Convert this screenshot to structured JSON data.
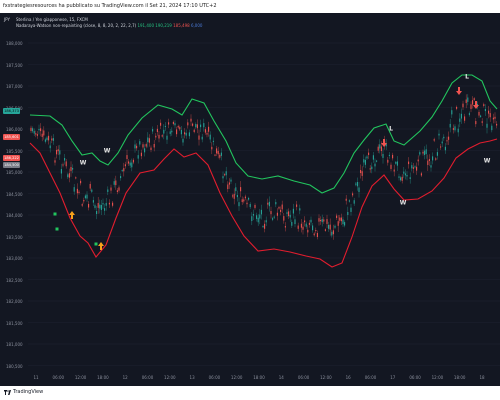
{
  "header": {
    "caption": "fxstrategiesresources ha pubblicato su TradingView.com il Set 21, 2024 17:10 UTC+2"
  },
  "chart": {
    "period_label": "JPY",
    "legend": {
      "line1": "Sterlina / Yen giapponese, 15, FXCM",
      "line2_prefix": "Nadaraya-Watson non-repainting (close, 8, 8, 20, 2, 22, 2,7)",
      "val_green": "191,400",
      "val_green2": "190,219",
      "val_red": "185,498",
      "val_blue": "6,000"
    },
    "price_tags": [
      {
        "text": "186,373",
        "bg": "#26a69a",
        "color": "#0b0f14"
      },
      {
        "text": "185,601",
        "bg": "#ef5350",
        "color": "#ffffff"
      },
      {
        "text": "186,222",
        "bg": "#ef5350",
        "color": "#ffffff"
      },
      {
        "text": "184,500",
        "bg": "#787b86",
        "color": "#ffffff"
      }
    ],
    "y_labels": [
      "188,000",
      "187,500",
      "187,000",
      "186,500",
      "186,000",
      "185,500",
      "185,000",
      "184,500",
      "184,000",
      "183,500",
      "183,000",
      "182,500",
      "182,000",
      "181,500",
      "181,000",
      "180,500"
    ],
    "x_labels": [
      "11",
      "06:00",
      "12:00",
      "18:00",
      "12",
      "06:00",
      "12:00",
      "13",
      "06:00",
      "12:00",
      "18:00",
      "14",
      "06:00",
      "12:00",
      "16",
      "06:00",
      "17",
      "06:00",
      "12:00",
      "18:00",
      "18"
    ],
    "signals": {
      "letters": [
        "W",
        "W",
        "L",
        "W",
        "L",
        "W"
      ],
      "buy_color": "#f7a21b",
      "sell_color": "#ef5350"
    },
    "colors": {
      "background": "#131722",
      "upper_band": "#22c55e",
      "lower_band": "#e11d2e",
      "up_candle": "#26a69a",
      "down_candle": "#ef5350",
      "grid": "#1e2230"
    }
  },
  "footer": {
    "brand": "TradingView"
  }
}
